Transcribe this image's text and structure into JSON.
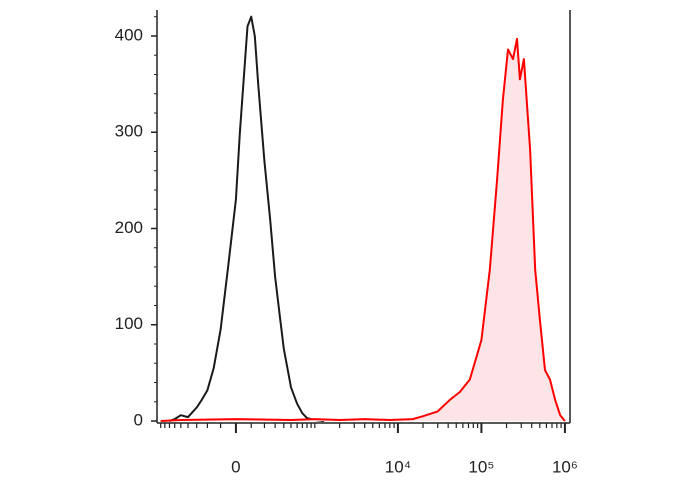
{
  "chart_data": {
    "type": "histogram-overlay",
    "xscale": "biexponential",
    "xlim": [
      -1000,
      1150000
    ],
    "xticks": [
      0,
      {
        "value": 10000,
        "label": "10⁴"
      },
      {
        "value": 100000,
        "label": "10⁵"
      },
      {
        "value": 1000000,
        "label": "10⁶"
      }
    ],
    "xminor": [
      -900,
      -800,
      -700,
      -600,
      -500,
      -400,
      -300,
      -200,
      -100,
      100,
      200,
      300,
      400,
      500,
      600,
      700,
      800,
      900,
      1000,
      2000,
      3000,
      4000,
      5000,
      6000,
      7000,
      8000,
      9000,
      20000,
      30000,
      40000,
      50000,
      60000,
      70000,
      80000,
      90000,
      200000,
      300000,
      400000,
      500000,
      600000,
      700000,
      800000,
      900000
    ],
    "ylim": [
      0,
      427
    ],
    "yticks": [
      0,
      100,
      200,
      300,
      400
    ],
    "yminor": [
      20,
      40,
      60,
      80,
      120,
      140,
      160,
      180,
      220,
      240,
      260,
      280,
      320,
      340,
      360,
      380,
      420
    ],
    "series": [
      {
        "color": "#1a1a1a",
        "fill": "none",
        "x": [
          -700,
          -600,
          -500,
          -400,
          -300,
          -250,
          -200,
          -150,
          -100,
          -50,
          0,
          25,
          50,
          75,
          100,
          125,
          150,
          200,
          250,
          300,
          350,
          400,
          500,
          600,
          700,
          800,
          1000,
          1300
        ],
        "values": [
          0,
          2,
          6,
          4,
          14,
          22,
          32,
          55,
          95,
          160,
          230,
          300,
          355,
          410,
          420,
          400,
          350,
          270,
          210,
          150,
          110,
          75,
          35,
          18,
          8,
          3,
          1,
          0
        ]
      },
      {
        "color": "#ff0000",
        "fill": "#fde4e6",
        "x": [
          -900,
          -500,
          0,
          500,
          1000,
          2000,
          4000,
          8000,
          15000,
          20000,
          30000,
          42000,
          55000,
          72700,
          100000,
          126000,
          154000,
          181000,
          208000,
          239000,
          267000,
          289000,
          323000,
          383000,
          440000,
          502000,
          577000,
          663000,
          763000,
          877000,
          1000000
        ],
        "values": [
          0,
          1,
          2,
          1,
          2,
          1,
          2,
          1,
          2,
          5,
          10,
          22,
          30,
          43,
          84,
          157,
          251,
          334,
          386,
          376,
          397,
          355,
          376,
          282,
          157,
          105,
          53,
          43,
          22,
          6,
          0
        ]
      }
    ]
  }
}
